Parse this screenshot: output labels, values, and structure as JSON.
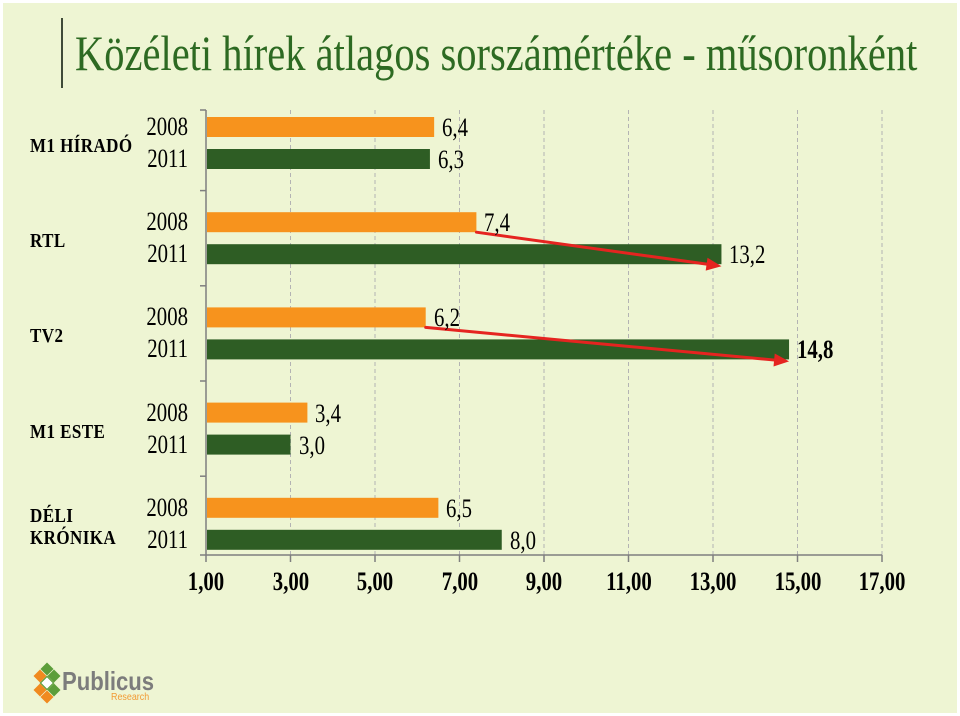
{
  "chart_data": {
    "type": "bar",
    "orientation": "horizontal",
    "title": "Közéleti hírek átlagos sorszámértéke - műsoronként",
    "categories": [
      "M1 HÍRADÓ",
      "RTL",
      "TV2",
      "M1 ESTE",
      "DÉLI KRÓNIKA"
    ],
    "series": [
      {
        "name": "2008",
        "values": [
          6.4,
          7.4,
          6.2,
          3.4,
          6.5
        ],
        "value_labels": [
          "6,4",
          "7,4",
          "6,2",
          "3,4",
          "6,5"
        ],
        "color": "#f7931d"
      },
      {
        "name": "2011",
        "values": [
          6.3,
          13.2,
          14.8,
          3.0,
          8.0
        ],
        "value_labels": [
          "6,3",
          "13,2",
          "14,8",
          "3,0",
          "8,0"
        ],
        "color": "#2e5d24"
      }
    ],
    "xlim": [
      1,
      17
    ],
    "xticks": [
      1,
      3,
      5,
      7,
      9,
      11,
      13,
      15,
      17
    ],
    "xtick_labels": [
      "1,00",
      "3,00",
      "5,00",
      "7,00",
      "9,00",
      "11,00",
      "13,00",
      "15,00",
      "17,00"
    ],
    "grid": true,
    "annotations": [
      {
        "type": "arrow",
        "category": "RTL",
        "from": "2008",
        "to": "2011",
        "color": "#e52420"
      },
      {
        "type": "arrow",
        "category": "TV2",
        "from": "2008",
        "to": "2011",
        "color": "#e52420"
      }
    ]
  },
  "colors": {
    "background": "#eef5d3",
    "title": "#2d6a22",
    "axis": "#7f7f7f",
    "grid": "#b3b3b3"
  },
  "logo": {
    "name": "Publicus",
    "tagline": "Research",
    "colors": {
      "text": "#7c7c7c",
      "tagline": "#f29a34",
      "green": "#5c9e3a",
      "orange": "#f08a1f"
    }
  }
}
